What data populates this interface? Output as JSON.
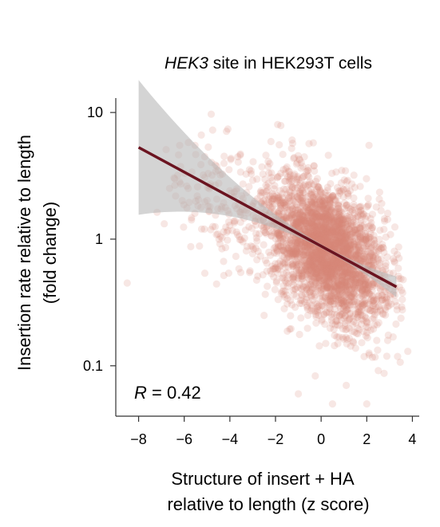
{
  "chart_data": {
    "type": "scatter",
    "title": {
      "italic": "HEK3",
      "rest": " site in HEK293T cells"
    },
    "xlabel": [
      "Structure of insert + HA",
      "relative to length (z score)"
    ],
    "ylabel": [
      "Insertion rate relative to length",
      "(fold change)"
    ],
    "xlim": [
      -9,
      4.3
    ],
    "ylim": [
      0.04,
      13
    ],
    "yscale": "log",
    "x_ticks": [
      -8,
      -6,
      -4,
      -2,
      0,
      2,
      4
    ],
    "x_tick_labels": [
      "−8",
      "−6",
      "−4",
      "−2",
      "0",
      "2",
      "4"
    ],
    "y_ticks": [
      0.1,
      1,
      10
    ],
    "y_tick_labels": [
      "0.1",
      "1",
      "10"
    ],
    "annotation": {
      "italic": "R",
      "rest": " = 0.42"
    },
    "point_color": "#d9857a",
    "point_alpha": 0.2,
    "line_color": "#6b1420",
    "band_color": "#b8b8b8",
    "fit": {
      "x_start": -8.0,
      "y_start": 5.3,
      "x_end": 3.3,
      "y_end": 0.42
    },
    "cloud": {
      "n_points": 3000,
      "x_mean": 0.2,
      "x_sd": 1.3,
      "log10_y_resid_sd": 0.26,
      "clusters": [
        {
          "x": -4.8,
          "y": 1.8,
          "n": 70
        },
        {
          "x": -3.5,
          "y": 1.3,
          "n": 70
        },
        {
          "x": -5.3,
          "y": 2.8,
          "n": 30
        }
      ],
      "outliers": [
        {
          "x": -8.5,
          "y": 0.45
        },
        {
          "x": -6.2,
          "y": 5.5
        },
        {
          "x": -1.0,
          "y": 0.06
        },
        {
          "x": 0.5,
          "y": 0.05
        },
        {
          "x": 1.1,
          "y": 0.07
        },
        {
          "x": 2.0,
          "y": 0.05
        },
        {
          "x": 3.8,
          "y": 0.13
        },
        {
          "x": 2.1,
          "y": 5.5
        },
        {
          "x": -2.5,
          "y": 0.25
        },
        {
          "x": 0.2,
          "y": 0.15
        }
      ]
    }
  }
}
